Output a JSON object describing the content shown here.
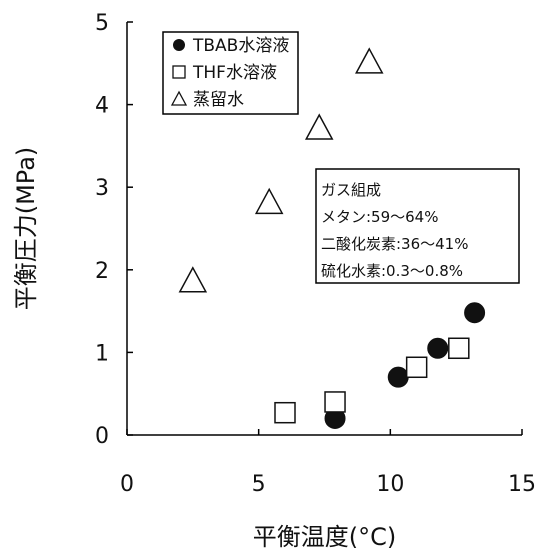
{
  "chart_data": {
    "type": "scatter",
    "xlabel": "平衡温度(°C)",
    "ylabel": "平衡圧力(MPa)",
    "xlim": [
      0,
      15
    ],
    "ylim": [
      0,
      5
    ],
    "xticks": [
      "0",
      "5",
      "10",
      "15"
    ],
    "yticks": [
      "0",
      "1",
      "2",
      "3",
      "4",
      "5"
    ],
    "grid": false,
    "legend_position": "top-left",
    "series": [
      {
        "name": "TBAB水溶液",
        "marker": "circle-filled",
        "color": "#111111",
        "points": [
          [
            7.9,
            0.2
          ],
          [
            10.3,
            0.7
          ],
          [
            11.8,
            1.05
          ],
          [
            13.2,
            1.48
          ]
        ]
      },
      {
        "name": "THF水溶液",
        "marker": "square-open",
        "color": "#111111",
        "points": [
          [
            6.0,
            0.27
          ],
          [
            7.9,
            0.4
          ],
          [
            11.0,
            0.82
          ],
          [
            12.6,
            1.05
          ]
        ]
      },
      {
        "name": "蒸留水",
        "marker": "triangle-open",
        "color": "#111111",
        "points": [
          [
            2.5,
            1.85
          ],
          [
            5.4,
            2.8
          ],
          [
            7.3,
            3.7
          ],
          [
            9.2,
            4.5
          ]
        ]
      }
    ],
    "annotation": {
      "lines": [
        "ガス組成",
        "メタン:59～64%",
        "二酸化炭素:36～41%",
        "硫化水素:0.3～0.8%"
      ]
    }
  }
}
